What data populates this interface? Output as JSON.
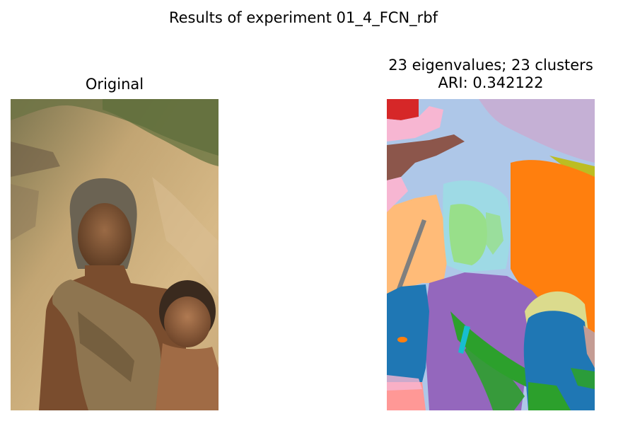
{
  "figure": {
    "suptitle": "Results of experiment 01_4_FCN_rbf"
  },
  "panels": {
    "original": {
      "title": "Original",
      "content": "photo of elderly woman holding a child, dirt path background"
    },
    "segmentation": {
      "title_line1": "23 eigenvalues; 23 clusters",
      "title_line2": "ARI: 0.342122"
    }
  },
  "cluster_colors": [
    "#1f77b4",
    "#ff7f0e",
    "#2ca02c",
    "#d62728",
    "#9467bd",
    "#8c564b",
    "#e377c2",
    "#7f7f7f",
    "#bcbd22",
    "#17becf",
    "#aec7e8",
    "#ffbb78",
    "#98df8a",
    "#ff9896",
    "#c5b0d5",
    "#c49c94",
    "#f7b6d2",
    "#c7c7c7",
    "#dbdb8d",
    "#9edae5"
  ]
}
